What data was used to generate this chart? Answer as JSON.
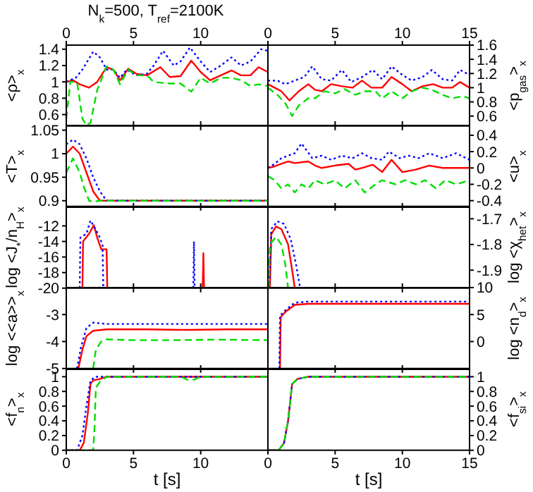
{
  "chart_data": [
    {
      "type": "line",
      "title": "N$_{k}$=500, T$_{ref}$=2100K",
      "ylabel": "<ρ>$_{x}$",
      "xlim": [
        0,
        15
      ],
      "xticks": [
        0,
        5,
        10
      ],
      "x2lim": [
        0,
        15
      ],
      "x2ticks": [
        0,
        5,
        10
      ],
      "ylim": [
        0.46,
        1.45
      ],
      "yticks": [
        0.6,
        0.8,
        1,
        1.2,
        1.4
      ],
      "tick_labels": "y",
      "series": [
        {
          "color": "#ff0000",
          "line_style": "solid",
          "x": [
            0,
            0.5,
            1,
            1.7,
            2.3,
            3,
            3.5,
            4,
            4.6,
            5.2,
            6,
            7,
            7.7,
            8.5,
            9.3,
            10,
            10.7,
            11.5,
            12.3,
            13,
            13.7,
            14.3,
            15
          ],
          "values": [
            1.0,
            1.02,
            0.97,
            0.93,
            1.0,
            1.18,
            1.15,
            1.02,
            1.16,
            1.1,
            1.08,
            1.18,
            1.06,
            1.07,
            1.26,
            1.12,
            1.02,
            1.08,
            1.14,
            1.08,
            1.08,
            1.18,
            1.12
          ]
        },
        {
          "color": "#0000ff",
          "line_style": "dotted",
          "x": [
            0,
            0.7,
            1.2,
            2,
            2.5,
            3,
            3.5,
            4,
            4.5,
            5.2,
            6,
            6.5,
            7.2,
            8,
            8.5,
            9.2,
            10,
            10.7,
            11.5,
            12.3,
            13,
            13.7,
            14.5,
            15
          ],
          "values": [
            1.0,
            1.05,
            1.15,
            1.37,
            1.3,
            1.15,
            1.15,
            1.05,
            1.15,
            1.08,
            1.1,
            1.2,
            1.38,
            1.2,
            1.25,
            1.42,
            1.25,
            1.12,
            1.2,
            1.3,
            1.2,
            1.25,
            1.4,
            1.38
          ]
        },
        {
          "color": "#00dd00",
          "line_style": "dashed",
          "x": [
            0,
            0.3,
            0.8,
            1.2,
            1.5,
            1.8,
            2.3,
            3,
            3.5,
            4,
            4.6,
            5.2,
            6,
            6.5,
            7.5,
            8.5,
            9.3,
            10,
            10.7,
            11.5,
            12.3,
            13,
            13.7,
            14.3,
            15
          ],
          "values": [
            0.55,
            1.0,
            1.0,
            0.55,
            0.47,
            0.5,
            0.9,
            1.19,
            1.15,
            0.97,
            1.15,
            1.08,
            1.08,
            1.0,
            0.98,
            0.98,
            0.88,
            1.05,
            0.98,
            1.05,
            1.05,
            1.02,
            0.95,
            0.97,
            0.95
          ]
        }
      ]
    },
    {
      "type": "line",
      "y2label": "<p$_{gas}$>$_{x}$",
      "xlim": [
        0,
        15
      ],
      "xticks": [
        0,
        5,
        10,
        15
      ],
      "x2lim": [
        0,
        15
      ],
      "x2ticks": [
        0,
        5,
        10,
        15
      ],
      "y2lim": [
        0.46,
        1.6
      ],
      "y2ticks": [
        0.6,
        0.8,
        1,
        1.2,
        1.4,
        1.6
      ],
      "tick_labels": "y",
      "series": [
        {
          "color": "#ff0000",
          "line_style": "solid",
          "axis": "y2",
          "x": [
            0,
            0.5,
            1,
            1.6,
            2.3,
            3,
            3.5,
            4,
            4.7,
            5.5,
            6.3,
            7,
            7.7,
            8.5,
            9.2,
            10,
            10.7,
            11.5,
            12.3,
            13,
            13.7,
            14.3,
            15
          ],
          "values": [
            1.05,
            1.0,
            0.95,
            0.82,
            0.95,
            1.05,
            0.97,
            0.95,
            1.05,
            1.02,
            1.0,
            1.1,
            1.0,
            1.0,
            1.15,
            1.05,
            0.95,
            1.02,
            1.05,
            1.0,
            1.0,
            1.08,
            1.0
          ]
        },
        {
          "color": "#0000ff",
          "line_style": "dotted",
          "axis": "y2",
          "x": [
            0,
            0.7,
            1.3,
            2,
            2.7,
            3.3,
            4,
            4.7,
            5.5,
            6.2,
            7,
            7.8,
            8.5,
            9.2,
            10,
            10.7,
            11.5,
            12.2,
            13,
            13.7,
            14.3,
            15
          ],
          "values": [
            1.1,
            1.1,
            1.05,
            1.1,
            1.15,
            1.3,
            1.12,
            1.1,
            1.25,
            1.08,
            1.15,
            1.25,
            1.12,
            1.3,
            1.18,
            1.1,
            1.15,
            1.25,
            1.12,
            1.1,
            1.25,
            1.18
          ]
        },
        {
          "color": "#00dd00",
          "line_style": "dashed",
          "axis": "y2",
          "x": [
            0,
            0.7,
            1.3,
            1.8,
            2.3,
            3,
            3.5,
            4.2,
            5,
            5.7,
            6.5,
            7.2,
            8,
            8.5,
            9.2,
            10,
            10.7,
            11.5,
            12.2,
            13,
            13.7,
            14.5,
            15
          ],
          "values": [
            1.0,
            0.9,
            0.78,
            0.6,
            0.75,
            0.85,
            0.85,
            0.95,
            0.92,
            0.98,
            0.9,
            0.95,
            0.95,
            0.85,
            0.95,
            0.85,
            0.95,
            1.0,
            0.97,
            0.9,
            0.85,
            0.88,
            0.85
          ]
        }
      ]
    },
    {
      "type": "line",
      "ylabel": "<T>$_{x}$",
      "xlim": [
        0,
        15
      ],
      "xticks": [
        0,
        5,
        10
      ],
      "ylim": [
        0.888,
        1.06
      ],
      "yticks": [
        0.9,
        0.95,
        1,
        1.05
      ],
      "tick_labels": "y",
      "series": [
        {
          "color": "#ff0000",
          "line_style": "solid",
          "x": [
            0,
            0.5,
            1,
            1.5,
            2,
            2.5,
            3,
            15
          ],
          "values": [
            1.0,
            1.015,
            1.0,
            0.96,
            0.92,
            0.9,
            0.9,
            0.9
          ]
        },
        {
          "color": "#0000ff",
          "line_style": "dotted",
          "x": [
            0,
            0.5,
            1,
            1.5,
            2,
            2.5,
            3,
            15
          ],
          "values": [
            1.02,
            1.03,
            1.02,
            0.99,
            0.95,
            0.92,
            0.9,
            0.9
          ]
        },
        {
          "color": "#00dd00",
          "line_style": "dashed",
          "x": [
            0,
            0.5,
            1,
            1.3,
            1.7,
            2,
            2.5,
            15
          ],
          "values": [
            0.96,
            0.99,
            0.96,
            0.93,
            0.9,
            0.898,
            0.9,
            0.9
          ]
        }
      ]
    },
    {
      "type": "line",
      "y2label": "<u>$_{x}$",
      "xlim": [
        0,
        15
      ],
      "xticks": [
        0,
        5,
        10,
        15
      ],
      "y2lim": [
        -0.47,
        0.52
      ],
      "y2ticks": [
        -0.4,
        -0.2,
        0,
        0.2,
        0.4
      ],
      "tick_labels": "y",
      "series": [
        {
          "color": "#ff0000",
          "line_style": "solid",
          "axis": "y2",
          "x": [
            0,
            0.5,
            1,
            1.5,
            2,
            3,
            3.5,
            4,
            5,
            6,
            6.5,
            7,
            7.8,
            8.5,
            9.2,
            10,
            11,
            12,
            13,
            14,
            15
          ],
          "values": [
            0.0,
            0.02,
            0.05,
            0.08,
            0.06,
            0.08,
            0.03,
            0.0,
            0.03,
            0.05,
            -0.02,
            0.0,
            0.04,
            -0.05,
            0.1,
            -0.05,
            -0.02,
            0.03,
            0.0,
            0.0,
            0.0
          ]
        },
        {
          "color": "#0000ff",
          "line_style": "dotted",
          "axis": "y2",
          "x": [
            0,
            0.5,
            1,
            2,
            2.5,
            3.3,
            4,
            4.7,
            5.5,
            6.3,
            7,
            7.7,
            8.5,
            9,
            9.8,
            10.5,
            11.2,
            12,
            13,
            14,
            15
          ],
          "values": [
            0.0,
            0.05,
            0.12,
            0.18,
            0.3,
            0.12,
            0.15,
            0.1,
            0.15,
            0.12,
            0.18,
            0.12,
            0.1,
            0.2,
            0.12,
            0.15,
            0.12,
            0.18,
            0.12,
            0.18,
            0.1
          ]
        },
        {
          "color": "#00dd00",
          "line_style": "dashed",
          "axis": "y2",
          "x": [
            0,
            0.5,
            1,
            1.5,
            2,
            2.5,
            3,
            3.5,
            4.2,
            5,
            5.7,
            6.5,
            7.2,
            8,
            8.5,
            9.5,
            10.2,
            11,
            11.7,
            12.5,
            13.2,
            14,
            15
          ],
          "values": [
            -0.1,
            -0.15,
            -0.25,
            -0.2,
            -0.3,
            -0.2,
            -0.25,
            -0.15,
            -0.2,
            -0.15,
            -0.25,
            -0.15,
            -0.3,
            -0.2,
            -0.15,
            -0.2,
            -0.15,
            -0.2,
            -0.15,
            -0.25,
            -0.15,
            -0.2,
            -0.15
          ]
        }
      ]
    },
    {
      "type": "line",
      "ylabel": "log <J$_{*}$/n$_{H}$>$_{x}$",
      "xlim": [
        0,
        15
      ],
      "xticks": [
        0,
        5,
        10
      ],
      "ylim": [
        -20,
        -9.6
      ],
      "yticks": [
        -20,
        -18,
        -16,
        -14,
        -12
      ],
      "tick_labels": "y",
      "series": [
        {
          "color": "#ff0000",
          "line_style": "solid",
          "x": [
            1.2,
            1.25,
            1.7,
            2.05,
            2.3,
            2.6,
            3.0,
            3.05,
            3.1,
            10.15,
            10.2,
            10.25
          ],
          "values": [
            -20,
            -14,
            -13,
            -11.9,
            -13.5,
            -15,
            -15,
            -20,
            null,
            -20,
            -15.5,
            -20
          ]
        },
        {
          "color": "#0000ff",
          "line_style": "dotted",
          "x": [
            1.0,
            1.05,
            1.5,
            1.8,
            2.2,
            2.5,
            2.7,
            2.75,
            2.8,
            9.45,
            9.5,
            9.55
          ],
          "values": [
            -20,
            -13.5,
            -13,
            -11.3,
            -12.5,
            -13.5,
            -14.5,
            -20,
            null,
            -20,
            -14,
            -20
          ]
        }
      ]
    },
    {
      "type": "line",
      "y2label": "log <χ$_{het}$>$_{x}$",
      "xlim": [
        0,
        15
      ],
      "xticks": [
        0,
        5,
        10,
        15
      ],
      "y2lim": [
        -1.97,
        -1.655
      ],
      "y2ticks": [
        -1.9,
        -1.8,
        -1.7
      ],
      "tick_labels": "y",
      "series": [
        {
          "color": "#ff0000",
          "line_style": "solid",
          "axis": "y2",
          "x": [
            0.15,
            0.25,
            0.6,
            1.0,
            1.5,
            1.8,
            2.0
          ],
          "values": [
            -1.97,
            -1.76,
            -1.73,
            -1.74,
            -1.8,
            -1.9,
            -1.97
          ]
        },
        {
          "color": "#0000ff",
          "line_style": "dotted",
          "axis": "y2",
          "x": [
            0.1,
            0.25,
            0.7,
            1.2,
            1.7,
            2.1,
            2.4
          ],
          "values": [
            -1.97,
            -1.74,
            -1.71,
            -1.72,
            -1.78,
            -1.88,
            -1.97
          ]
        },
        {
          "color": "#00dd00",
          "line_style": "dashed",
          "axis": "y2",
          "x": [
            0.05,
            0.15,
            0.6,
            1.0,
            1.3,
            1.5
          ],
          "values": [
            -1.97,
            -1.8,
            -1.77,
            -1.8,
            -1.88,
            -1.97
          ]
        }
      ]
    },
    {
      "type": "line",
      "ylabel": "log <<a>>$_{x}$",
      "xlim": [
        0,
        15
      ],
      "xticks": [
        0,
        5,
        10
      ],
      "ylim": [
        -5,
        -2
      ],
      "yticks": [
        -5,
        -4,
        -3
      ],
      "tick_labels": "y",
      "series": [
        {
          "color": "#ff0000",
          "line_style": "solid",
          "x": [
            0.9,
            1.2,
            1.5,
            2,
            3,
            6,
            9,
            12,
            15
          ],
          "values": [
            -5,
            -4.3,
            -3.8,
            -3.6,
            -3.55,
            -3.55,
            -3.57,
            -3.55,
            -3.55
          ]
        },
        {
          "color": "#0000ff",
          "line_style": "dotted",
          "x": [
            0.8,
            1.1,
            1.5,
            2,
            3,
            6,
            9,
            12,
            15
          ],
          "values": [
            -5,
            -4.2,
            -3.5,
            -3.3,
            -3.35,
            -3.35,
            -3.35,
            -3.35,
            -3.35
          ]
        },
        {
          "color": "#00dd00",
          "line_style": "dashed",
          "x": [
            2,
            2.2,
            2.6,
            3,
            5,
            8,
            11,
            15
          ],
          "values": [
            -5,
            -4.3,
            -4.0,
            -3.92,
            -3.95,
            -3.95,
            -3.93,
            -3.95
          ]
        }
      ]
    },
    {
      "type": "line",
      "y2label": "log <n$_{d}$>$_{x}$",
      "xlim": [
        0,
        15
      ],
      "xticks": [
        0,
        5,
        10,
        15
      ],
      "y2lim": [
        -5,
        10
      ],
      "y2ticks": [
        0,
        5,
        10
      ],
      "tick_labels": "y",
      "series": [
        {
          "color": "#ff0000",
          "line_style": "solid",
          "axis": "y2",
          "x": [
            0.9,
            0.95,
            1.3,
            2,
            3,
            15
          ],
          "values": [
            -5,
            4.5,
            5.5,
            6.8,
            7.0,
            7.0
          ]
        },
        {
          "color": "#0000ff",
          "line_style": "dotted",
          "axis": "y2",
          "x": [
            0.85,
            0.9,
            1.3,
            2,
            3,
            15
          ],
          "values": [
            -5,
            4.8,
            5.8,
            7.2,
            7.4,
            7.4
          ]
        }
      ]
    },
    {
      "type": "line",
      "ylabel": "<f$_{n}$>$_{x}$",
      "xlabel": "t [s]",
      "xlim": [
        0,
        15
      ],
      "xticks": [
        0,
        5,
        10
      ],
      "ylim": [
        0,
        1.1
      ],
      "yticks": [
        0,
        0.2,
        0.4,
        0.6,
        0.8,
        1
      ],
      "series": [
        {
          "color": "#ff0000",
          "line_style": "solid",
          "x": [
            0,
            1,
            1.3,
            1.6,
            1.8,
            2,
            2.5,
            3,
            15
          ],
          "values": [
            0,
            0,
            0.1,
            0.5,
            0.9,
            0.95,
            0.97,
            1.0,
            1.0
          ]
        },
        {
          "color": "#0000ff",
          "line_style": "dotted",
          "x": [
            0,
            0.8,
            1.2,
            1.5,
            1.8,
            2.2,
            15
          ],
          "values": [
            0,
            0,
            0.2,
            0.6,
            0.95,
            1.0,
            1.0
          ]
        },
        {
          "color": "#00dd00",
          "line_style": "dashed",
          "x": [
            0,
            2,
            2.1,
            2.2,
            2.5,
            3,
            8.5,
            9,
            9.5,
            10,
            15
          ],
          "values": [
            0,
            0,
            0.3,
            0.85,
            0.93,
            1.0,
            1.0,
            0.96,
            0.96,
            1.0,
            1.0
          ]
        }
      ]
    },
    {
      "type": "line",
      "y2label": "<f$_{si}$>$_{x}$",
      "xlabel": "t [s]",
      "xlim": [
        0,
        15
      ],
      "xticks": [
        0,
        5,
        10,
        15
      ],
      "y2lim": [
        0,
        1.1
      ],
      "y2ticks": [
        0,
        0.2,
        0.4,
        0.6,
        0.8,
        1
      ],
      "series": [
        {
          "color": "#ff0000",
          "line_style": "solid",
          "axis": "y2",
          "x": [
            0,
            0.8,
            1.2,
            1.5,
            1.8,
            2.2,
            3,
            15
          ],
          "values": [
            0,
            0,
            0.1,
            0.4,
            0.9,
            0.97,
            1.0,
            1.0
          ]
        },
        {
          "color": "#0000ff",
          "line_style": "dotted",
          "axis": "y2",
          "x": [
            0,
            0.8,
            1.2,
            1.5,
            1.8,
            2.2,
            3,
            15
          ],
          "values": [
            0,
            0,
            0.1,
            0.4,
            0.9,
            0.97,
            1.0,
            1.0
          ]
        },
        {
          "color": "#00dd00",
          "line_style": "dashed",
          "axis": "y2",
          "x": [
            0,
            0.8,
            1.2,
            1.5,
            1.8,
            2.2,
            3,
            15
          ],
          "values": [
            0,
            0,
            0.1,
            0.4,
            0.9,
            0.97,
            1.0,
            1.0
          ]
        }
      ]
    }
  ]
}
